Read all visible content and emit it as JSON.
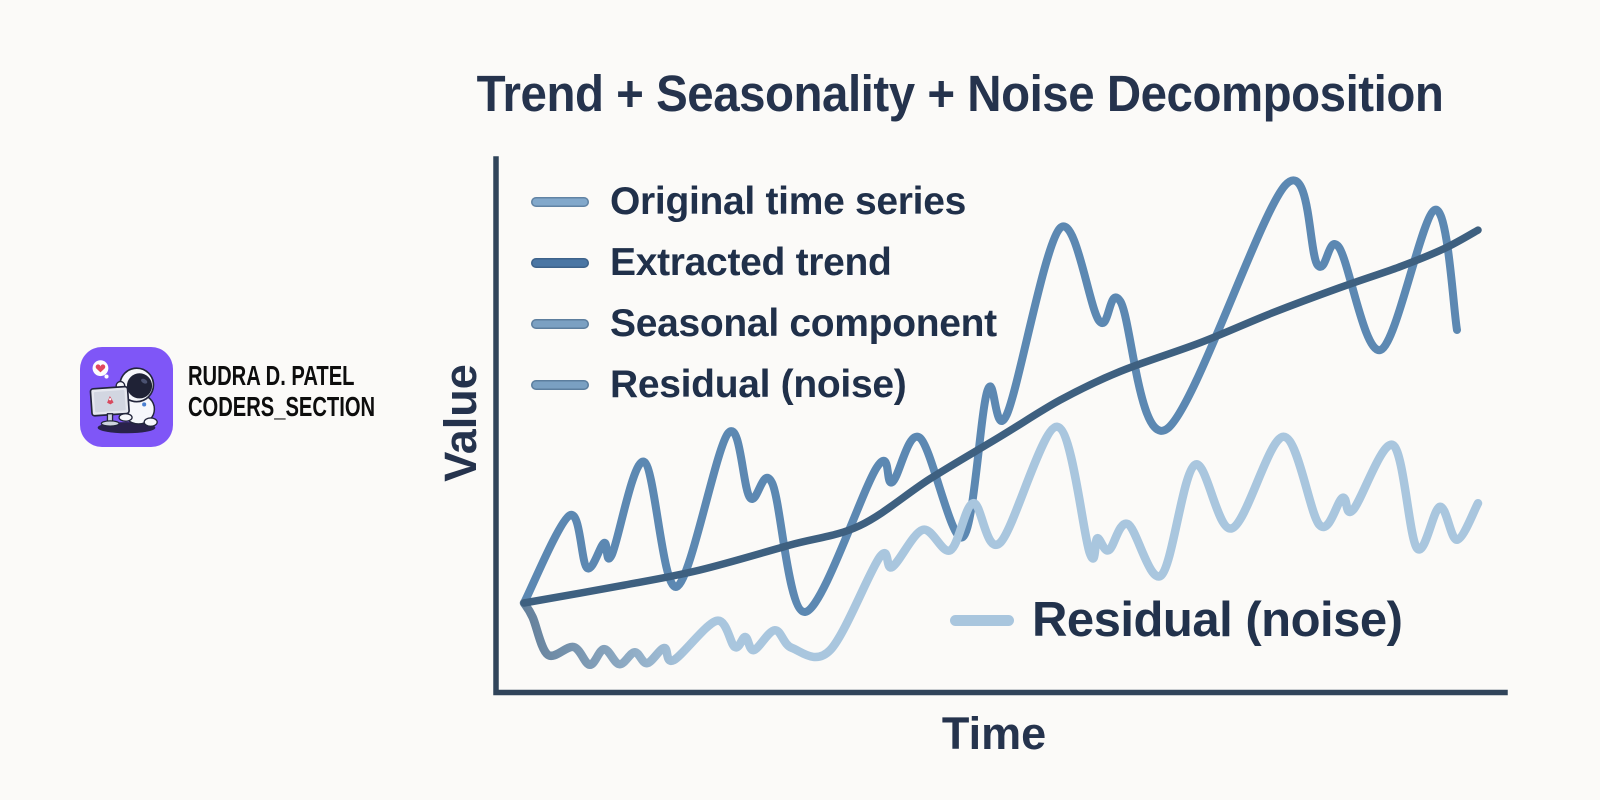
{
  "branding": {
    "badge_icon": "astronaut-coding-icon",
    "badge_color": "#7f56f7",
    "name_line1": "RUDRA D. PATEL",
    "name_line2": "CODERS_SECTION"
  },
  "chart": {
    "title": "Trend + Seasonality + Noise Decomposition",
    "x_axis_label": "Time",
    "y_axis_label": "Value",
    "annotation_label": "Residual (noise)",
    "annotation_color": "#a9c6de",
    "axis_color": "#30445a",
    "legend": [
      {
        "label": "Original time series",
        "color": "#82a8cb"
      },
      {
        "label": "Extracted trend",
        "color": "#4a76a4"
      },
      {
        "label": "Seasonal component",
        "color": "#7ba0c2"
      },
      {
        "label": "Residual (noise)",
        "color": "#7aa0c2"
      }
    ]
  },
  "chart_data": {
    "type": "line",
    "title": "Trend + Seasonality + Noise Decomposition",
    "xlabel": "Time",
    "ylabel": "Value",
    "x_range": [
      0,
      100
    ],
    "y_range": [
      0,
      100
    ],
    "ticks": "none",
    "grid": false,
    "legend_position": "upper-left inside",
    "annotations": [
      {
        "text": "Residual (noise)",
        "x": 48,
        "y": 13,
        "swatch_color": "#a9c6de"
      }
    ],
    "series": [
      {
        "name": "Original time series",
        "color": "#5c88b2",
        "stroke_width": 8,
        "points": [
          [
            0,
            17.2
          ],
          [
            4.8,
            34.0
          ],
          [
            6.6,
            23.9
          ],
          [
            8.4,
            28.7
          ],
          [
            9.2,
            26.4
          ],
          [
            12.6,
            44.2
          ],
          [
            16.0,
            20.3
          ],
          [
            21.4,
            49.7
          ],
          [
            23.7,
            37.3
          ],
          [
            26.0,
            40.2
          ],
          [
            29.5,
            15.5
          ],
          [
            37.0,
            43.2
          ],
          [
            38.6,
            40.3
          ],
          [
            41.5,
            48.8
          ],
          [
            46.0,
            29.8
          ],
          [
            48.6,
            57.9
          ],
          [
            50.6,
            53.2
          ],
          [
            56.2,
            88.9
          ],
          [
            60.3,
            71.1
          ],
          [
            62.5,
            74.9
          ],
          [
            67.4,
            50.5
          ],
          [
            79.8,
            97.1
          ],
          [
            83.2,
            81.8
          ],
          [
            85.4,
            85.3
          ],
          [
            89.8,
            65.6
          ],
          [
            95.5,
            92.4
          ],
          [
            97.8,
            69.4
          ]
        ]
      },
      {
        "name": "Extracted trend",
        "color": "#3e6080",
        "stroke_width": 7.5,
        "points": [
          [
            0,
            17.2
          ],
          [
            10.1,
            20.5
          ],
          [
            18.4,
            23.5
          ],
          [
            27.9,
            28.3
          ],
          [
            35.2,
            32.0
          ],
          [
            42.6,
            41.0
          ],
          [
            49.9,
            49.0
          ],
          [
            56.2,
            56.0
          ],
          [
            62.5,
            61.5
          ],
          [
            70.9,
            67.0
          ],
          [
            78.2,
            72.5
          ],
          [
            85.5,
            77.5
          ],
          [
            91.8,
            81.5
          ],
          [
            96.5,
            85.0
          ],
          [
            100,
            88.5
          ]
        ]
      },
      {
        "name": "Residual (noise)",
        "color": "#a9c6de",
        "gradient_start": "#64809b",
        "stroke_width": 8.5,
        "points": [
          [
            0,
            17.2
          ],
          [
            0.9,
            14.5
          ],
          [
            2.5,
            7.3
          ],
          [
            5.2,
            8.8
          ],
          [
            6.9,
            5.4
          ],
          [
            8.4,
            8.4
          ],
          [
            10.0,
            5.5
          ],
          [
            11.6,
            7.8
          ],
          [
            12.9,
            5.7
          ],
          [
            14.7,
            8.6
          ],
          [
            15.7,
            6.3
          ],
          [
            20.2,
            13.8
          ],
          [
            22.1,
            8.8
          ],
          [
            23.2,
            10.7
          ],
          [
            24.1,
            8.2
          ],
          [
            26.3,
            12.0
          ],
          [
            28.1,
            8.6
          ],
          [
            32.1,
            8.2
          ],
          [
            37.3,
            26.0
          ],
          [
            38.6,
            24.1
          ],
          [
            41.8,
            31.2
          ],
          [
            44.7,
            27.3
          ],
          [
            47.1,
            36.3
          ],
          [
            49.9,
            28.7
          ],
          [
            55.9,
            50.9
          ],
          [
            59.3,
            26.8
          ],
          [
            60.1,
            29.6
          ],
          [
            61.3,
            27.3
          ],
          [
            63.3,
            32.3
          ],
          [
            66.8,
            22.5
          ],
          [
            70.3,
            43.6
          ],
          [
            74.2,
            31.5
          ],
          [
            79.6,
            49.0
          ],
          [
            83.4,
            32.1
          ],
          [
            85.8,
            37.3
          ],
          [
            86.9,
            35.0
          ],
          [
            91.1,
            47.4
          ],
          [
            93.6,
            27.7
          ],
          [
            96.0,
            35.6
          ],
          [
            97.8,
            29.3
          ],
          [
            100,
            36.3
          ]
        ]
      }
    ]
  }
}
